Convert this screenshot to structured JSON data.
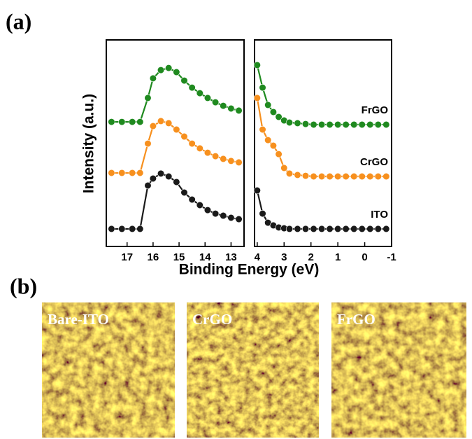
{
  "figure_labels": [
    "(a)",
    "(b)"
  ],
  "chart_data": {
    "type": "line",
    "y_label": "Intensity (a.u.)",
    "x_label": "Binding Energy (eV)",
    "ylim": [
      0,
      100
    ],
    "series": [
      {
        "name": "ITO",
        "color": "#1a1a1a"
      },
      {
        "name": "CrGO",
        "color": "#f7901e"
      },
      {
        "name": "FrGO",
        "color": "#1f8a1f"
      }
    ],
    "panels": [
      {
        "xlim": [
          17.8,
          12.5
        ],
        "xticks": [
          17,
          16,
          15,
          14,
          13
        ],
        "x": [
          17.6,
          17.2,
          16.8,
          16.5,
          16.2,
          16.0,
          15.7,
          15.4,
          15.1,
          14.8,
          14.5,
          14.2,
          13.9,
          13.6,
          13.3,
          13.0,
          12.7
        ],
        "series": [
          {
            "values": [
              8.5,
              8.5,
              8.5,
              8.5,
              29.5,
              32.9,
              35.3,
              33.9,
              31.2,
              26.1,
              22.7,
              20.0,
              17.6,
              15.9,
              14.9,
              13.9,
              13.2
            ]
          },
          {
            "values": [
              35.6,
              35.6,
              35.6,
              35.6,
              49.8,
              58.3,
              60.7,
              59.7,
              56.6,
              53.2,
              49.8,
              47.5,
              45.4,
              43.7,
              42.4,
              41.4,
              40.7
            ]
          },
          {
            "values": [
              60.3,
              60.3,
              60.3,
              60.3,
              71.9,
              81.4,
              85.4,
              86.4,
              84.4,
              80.3,
              76.9,
              74.2,
              71.9,
              69.8,
              68.1,
              66.8,
              65.8
            ]
          }
        ]
      },
      {
        "xlim": [
          4.1,
          -1
        ],
        "xticks": [
          4,
          3,
          2,
          1,
          0,
          -1
        ],
        "x": [
          4.0,
          3.8,
          3.6,
          3.4,
          3.2,
          3.0,
          2.8,
          2.5,
          2.2,
          1.9,
          1.6,
          1.3,
          1.0,
          0.7,
          0.4,
          0.1,
          -0.2,
          -0.5,
          -0.8
        ],
        "series": [
          {
            "values": [
              27.1,
              15.9,
              11.5,
              10.2,
              9.2,
              8.8,
              8.5,
              8.5,
              8.5,
              8.5,
              8.5,
              8.5,
              8.5,
              8.5,
              8.5,
              8.5,
              8.5,
              8.5,
              8.5
            ]
          },
          {
            "values": [
              71.9,
              56.6,
              51.5,
              48.8,
              44.7,
              38.0,
              35.3,
              34.6,
              34.2,
              33.9,
              33.9,
              33.9,
              33.9,
              33.9,
              33.9,
              33.9,
              33.9,
              33.9,
              33.9
            ]
          },
          {
            "values": [
              87.8,
              76.9,
              68.5,
              65.1,
              62.7,
              61.0,
              60.0,
              59.7,
              59.3,
              59.0,
              59.0,
              59.0,
              59.0,
              59.0,
              59.0,
              59.0,
              59.0,
              59.0,
              59.0
            ]
          }
        ]
      }
    ]
  },
  "images": [
    {
      "label": "Bare-ITO"
    },
    {
      "label": "CrGO"
    },
    {
      "label": "FrGO"
    }
  ]
}
